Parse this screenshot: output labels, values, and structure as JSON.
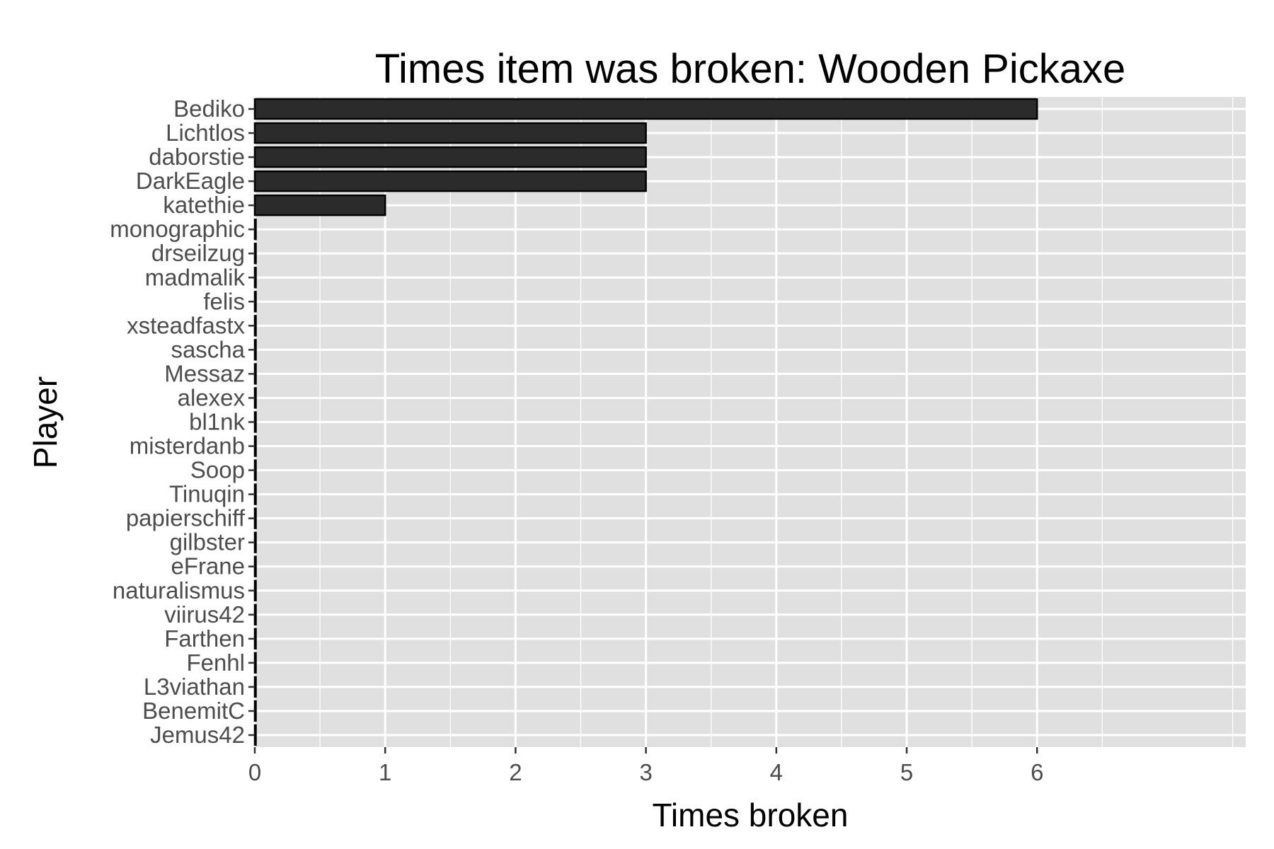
{
  "chart_data": {
    "type": "bar",
    "orientation": "horizontal",
    "title": "Times item was broken: Wooden Pickaxe",
    "xlabel": "Times broken",
    "ylabel": "Player",
    "xlim": [
      0,
      7.6
    ],
    "x_ticks": [
      0,
      1,
      2,
      3,
      4,
      5,
      6
    ],
    "grid": true,
    "legend": "none",
    "colors": {
      "panel": "#e0e0e0",
      "grid": "#ffffff",
      "bar_fill": "#2b2b2b",
      "bar_stroke": "#000000",
      "tick_label": "#4d4d4d"
    },
    "categories": [
      "Bediko",
      "Lichtlos",
      "daborstie",
      "DarkEagle",
      "katethie",
      "monographic",
      "drseilzug",
      "madmalik",
      "felis",
      "xsteadfastx",
      "sascha",
      "Messaz",
      "alexex",
      "bl1nk",
      "misterdanb",
      "Soop",
      "Tinuqin",
      "papierschiff",
      "gilbster",
      "eFrane",
      "naturalismus",
      "viirus42",
      "Farthen",
      "Fenhl",
      "L3viathan",
      "BenemitC",
      "Jemus42"
    ],
    "values": [
      6,
      3,
      3,
      3,
      1,
      0,
      0,
      0,
      0,
      0,
      0,
      0,
      0,
      0,
      0,
      0,
      0,
      0,
      0,
      0,
      0,
      0,
      0,
      0,
      0,
      0,
      0
    ]
  }
}
